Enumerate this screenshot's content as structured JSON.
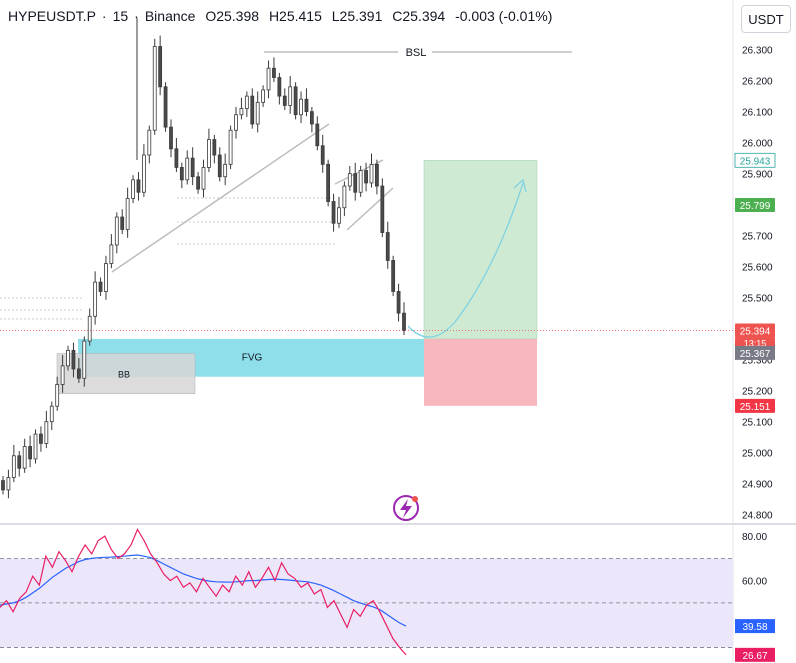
{
  "header": {
    "symbol": "HYPEUSDT.P",
    "interval": "15",
    "exchange": "Binance",
    "open": "O25.398",
    "high": "H25.415",
    "low": "L25.391",
    "close": "C25.394",
    "change": "-0.003 (-0.01%)"
  },
  "currency_button": "USDT",
  "colors": {
    "up": "#26a69a",
    "down": "#ef5350",
    "candle_body": "#4b4b4b",
    "price_line": "#ef5350",
    "fvg_fill": "#8fdfea",
    "bb_fill": "#d6d6d6",
    "profit_fill": "#cfead3",
    "loss_fill": "#f6b7bf",
    "rsi_line": "#e91e63",
    "rsi_ma_line": "#2962ff",
    "rsi_band": "#ece6fb",
    "arrow": "#7dd3e3"
  },
  "icons": [
    "lightning-logo-icon",
    "chevron-down-icon"
  ],
  "chart_data": {
    "type": "candlestick",
    "price_axis_ticks": [
      "26.300",
      "26.200",
      "26.100",
      "26.000",
      "25.900",
      "25.800",
      "25.700",
      "25.600",
      "25.500",
      "25.400",
      "25.300",
      "25.200",
      "25.100",
      "25.000",
      "24.900",
      "24.800"
    ],
    "ylim": [
      24.77,
      26.46
    ],
    "price_labels": {
      "target": "25.943",
      "entry": "25.799",
      "last_price": "25.394",
      "countdown": "13:15",
      "fvg_level": "25.367",
      "stop": "25.151"
    },
    "annotations": {
      "bsl": "BSL",
      "fvg": "FVG",
      "bb": "BB"
    },
    "candles_close": [
      24.88,
      24.92,
      24.99,
      24.95,
      25.02,
      24.98,
      25.06,
      25.03,
      25.1,
      25.15,
      25.22,
      25.28,
      25.33,
      25.27,
      25.24,
      25.36,
      25.44,
      25.55,
      25.52,
      25.61,
      25.67,
      25.76,
      25.72,
      25.82,
      25.88,
      25.84,
      25.96,
      26.04,
      26.31,
      26.18,
      26.05,
      25.98,
      25.92,
      25.88,
      25.95,
      25.89,
      25.85,
      25.92,
      26.01,
      25.96,
      25.89,
      25.93,
      26.04,
      26.09,
      26.11,
      26.15,
      26.06,
      26.13,
      26.17,
      26.24,
      26.21,
      26.15,
      26.12,
      26.18,
      26.09,
      26.14,
      26.1,
      26.06,
      25.99,
      25.93,
      25.81,
      25.74,
      25.79,
      25.86,
      25.9,
      25.84,
      25.91,
      25.87,
      25.93,
      25.86,
      25.71,
      25.62,
      25.52,
      25.45,
      25.394
    ],
    "rsi": {
      "ticks": [
        "80.00",
        "60.00"
      ],
      "ylim": [
        23,
        85
      ],
      "levels": [
        70,
        50,
        30
      ],
      "rsi_value": "26.67",
      "ma_value": "39.58",
      "rsi_values": [
        48,
        51,
        46,
        52,
        55,
        62,
        58,
        71,
        66,
        73,
        69,
        64,
        71,
        76,
        72,
        78,
        80,
        74,
        70,
        72,
        76,
        83,
        78,
        72,
        68,
        63,
        60,
        62,
        57,
        59,
        55,
        61,
        57,
        53,
        58,
        55,
        62,
        58,
        64,
        57,
        61,
        66,
        60,
        68,
        63,
        61,
        57,
        59,
        54,
        56,
        48,
        51,
        45,
        39,
        47,
        44,
        49,
        51,
        46,
        40,
        34,
        30,
        26.67
      ],
      "ma_values": [
        49,
        49.5,
        50,
        51,
        52.5,
        54.5,
        56.5,
        59,
        61.5,
        63.5,
        65.5,
        67,
        68.5,
        69.5,
        70,
        70.3,
        70.5,
        70.6,
        70.8,
        71,
        71.3,
        71.5,
        71,
        70.3,
        69,
        67.5,
        66,
        64.5,
        63,
        62,
        61,
        60.3,
        59.8,
        59.5,
        59.4,
        59.3,
        59.5,
        59.7,
        60,
        60,
        60.3,
        60.5,
        60.7,
        60.5,
        60.3,
        60,
        59.7,
        59.5,
        58.8,
        58,
        56.8,
        55.5,
        54,
        52.5,
        51,
        50,
        49,
        48.2,
        47,
        45,
        43,
        41,
        39.58
      ]
    }
  }
}
